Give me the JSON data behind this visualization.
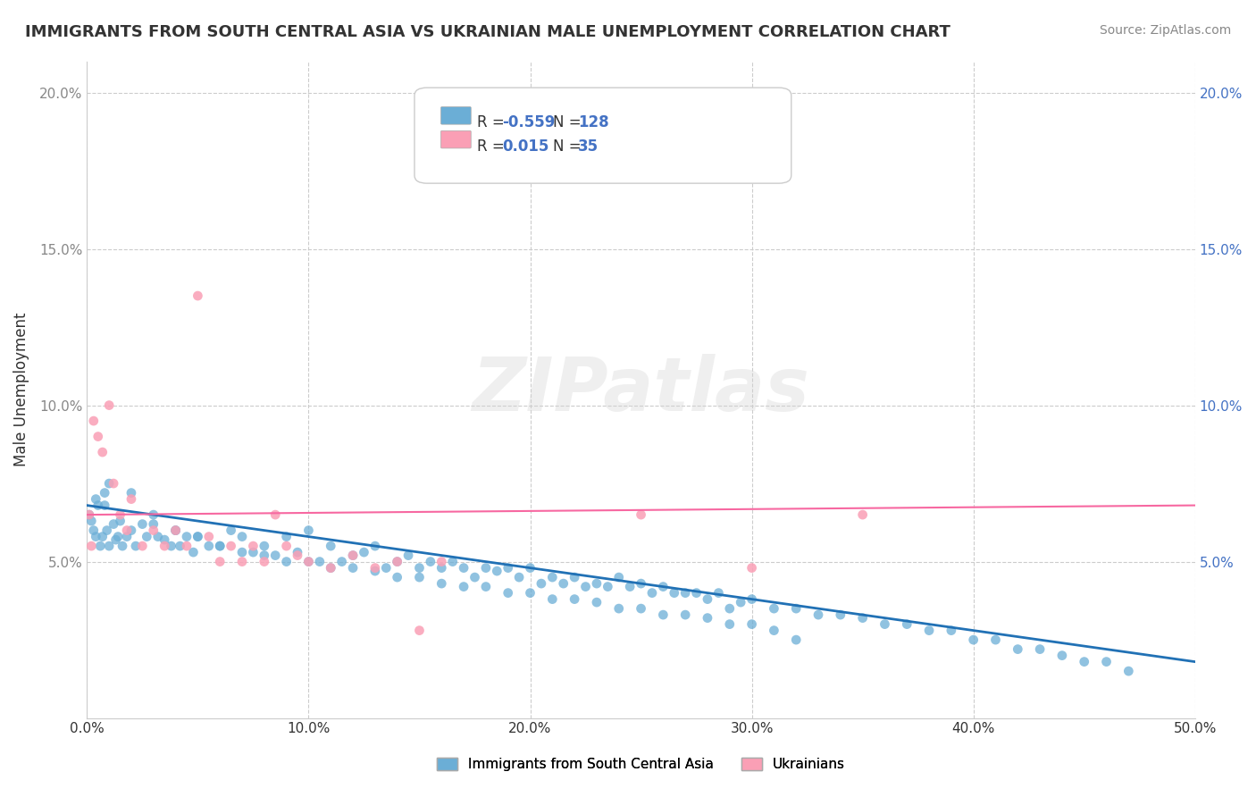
{
  "title": "IMMIGRANTS FROM SOUTH CENTRAL ASIA VS UKRAINIAN MALE UNEMPLOYMENT CORRELATION CHART",
  "source": "Source: ZipAtlas.com",
  "xlabel": "",
  "ylabel": "Male Unemployment",
  "xlim": [
    0.0,
    0.5
  ],
  "ylim": [
    0.0,
    0.21
  ],
  "yticks": [
    0.05,
    0.1,
    0.15,
    0.2
  ],
  "ytick_labels": [
    "5.0%",
    "10.0%",
    "15.0%",
    "20.0%"
  ],
  "xticks": [
    0.0,
    0.1,
    0.2,
    0.3,
    0.4,
    0.5
  ],
  "xtick_labels": [
    "0.0%",
    "10.0%",
    "20.0%",
    "30.0%",
    "40.0%",
    "50.0%"
  ],
  "watermark": "ZIPatlas",
  "blue_color": "#6baed6",
  "pink_color": "#fa9fb5",
  "blue_line_color": "#2171b5",
  "pink_line_color": "#f768a1",
  "legend_blue_label": "Immigrants from South Central Asia",
  "legend_pink_label": "Ukrainians",
  "R_blue": -0.559,
  "N_blue": 128,
  "R_pink": 0.015,
  "N_pink": 35,
  "blue_scatter_x": [
    0.001,
    0.002,
    0.003,
    0.004,
    0.005,
    0.006,
    0.007,
    0.008,
    0.009,
    0.01,
    0.012,
    0.013,
    0.014,
    0.015,
    0.016,
    0.018,
    0.02,
    0.022,
    0.025,
    0.027,
    0.03,
    0.032,
    0.035,
    0.038,
    0.04,
    0.042,
    0.045,
    0.048,
    0.05,
    0.055,
    0.06,
    0.065,
    0.07,
    0.075,
    0.08,
    0.085,
    0.09,
    0.095,
    0.1,
    0.105,
    0.11,
    0.115,
    0.12,
    0.125,
    0.13,
    0.135,
    0.14,
    0.145,
    0.15,
    0.155,
    0.16,
    0.165,
    0.17,
    0.175,
    0.18,
    0.185,
    0.19,
    0.195,
    0.2,
    0.205,
    0.21,
    0.215,
    0.22,
    0.225,
    0.23,
    0.235,
    0.24,
    0.245,
    0.25,
    0.255,
    0.26,
    0.265,
    0.27,
    0.275,
    0.28,
    0.285,
    0.29,
    0.295,
    0.3,
    0.31,
    0.32,
    0.33,
    0.34,
    0.35,
    0.36,
    0.37,
    0.38,
    0.39,
    0.4,
    0.41,
    0.42,
    0.43,
    0.44,
    0.45,
    0.46,
    0.47,
    0.01,
    0.02,
    0.03,
    0.04,
    0.05,
    0.06,
    0.07,
    0.08,
    0.09,
    0.1,
    0.11,
    0.12,
    0.13,
    0.14,
    0.15,
    0.16,
    0.17,
    0.18,
    0.19,
    0.2,
    0.21,
    0.22,
    0.23,
    0.24,
    0.25,
    0.26,
    0.27,
    0.28,
    0.29,
    0.3,
    0.31,
    0.32,
    0.004,
    0.008
  ],
  "blue_scatter_y": [
    0.065,
    0.063,
    0.06,
    0.058,
    0.068,
    0.055,
    0.058,
    0.072,
    0.06,
    0.055,
    0.062,
    0.057,
    0.058,
    0.063,
    0.055,
    0.058,
    0.06,
    0.055,
    0.062,
    0.058,
    0.062,
    0.058,
    0.057,
    0.055,
    0.06,
    0.055,
    0.058,
    0.053,
    0.058,
    0.055,
    0.055,
    0.06,
    0.058,
    0.053,
    0.055,
    0.052,
    0.058,
    0.053,
    0.06,
    0.05,
    0.055,
    0.05,
    0.052,
    0.053,
    0.055,
    0.048,
    0.05,
    0.052,
    0.048,
    0.05,
    0.048,
    0.05,
    0.048,
    0.045,
    0.048,
    0.047,
    0.048,
    0.045,
    0.048,
    0.043,
    0.045,
    0.043,
    0.045,
    0.042,
    0.043,
    0.042,
    0.045,
    0.042,
    0.043,
    0.04,
    0.042,
    0.04,
    0.04,
    0.04,
    0.038,
    0.04,
    0.035,
    0.037,
    0.038,
    0.035,
    0.035,
    0.033,
    0.033,
    0.032,
    0.03,
    0.03,
    0.028,
    0.028,
    0.025,
    0.025,
    0.022,
    0.022,
    0.02,
    0.018,
    0.018,
    0.015,
    0.075,
    0.072,
    0.065,
    0.06,
    0.058,
    0.055,
    0.053,
    0.052,
    0.05,
    0.05,
    0.048,
    0.048,
    0.047,
    0.045,
    0.045,
    0.043,
    0.042,
    0.042,
    0.04,
    0.04,
    0.038,
    0.038,
    0.037,
    0.035,
    0.035,
    0.033,
    0.033,
    0.032,
    0.03,
    0.03,
    0.028,
    0.025,
    0.07,
    0.068
  ],
  "pink_scatter_x": [
    0.001,
    0.002,
    0.003,
    0.005,
    0.007,
    0.01,
    0.012,
    0.015,
    0.018,
    0.02,
    0.025,
    0.03,
    0.035,
    0.04,
    0.045,
    0.05,
    0.055,
    0.06,
    0.065,
    0.07,
    0.075,
    0.08,
    0.085,
    0.09,
    0.095,
    0.1,
    0.11,
    0.12,
    0.13,
    0.14,
    0.15,
    0.16,
    0.25,
    0.3,
    0.35
  ],
  "pink_scatter_y": [
    0.065,
    0.055,
    0.095,
    0.09,
    0.085,
    0.1,
    0.075,
    0.065,
    0.06,
    0.07,
    0.055,
    0.06,
    0.055,
    0.06,
    0.055,
    0.135,
    0.058,
    0.05,
    0.055,
    0.05,
    0.055,
    0.05,
    0.065,
    0.055,
    0.052,
    0.05,
    0.048,
    0.052,
    0.048,
    0.05,
    0.028,
    0.05,
    0.065,
    0.048,
    0.065
  ],
  "blue_trend_x": [
    0.0,
    0.5
  ],
  "blue_trend_y": [
    0.068,
    0.018
  ],
  "pink_trend_x": [
    0.0,
    0.5
  ],
  "pink_trend_y": [
    0.065,
    0.068
  ],
  "background_color": "#ffffff",
  "grid_color": "#cccccc"
}
